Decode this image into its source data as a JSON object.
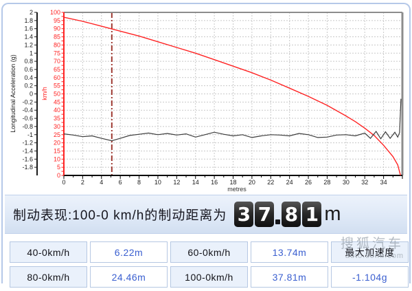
{
  "colors": {
    "speed_line": "#ff2222",
    "accel_line": "#3d3d3d",
    "marker_line": "#9e3a32",
    "grid": "#c8c8c8",
    "axis_black": "#1a1a1a",
    "border_gray": "#8c8c8c",
    "value_text_blue": "#3a5fd0",
    "frame_blue": "#b5c8e8"
  },
  "chart_data": {
    "type": "line",
    "title": "",
    "xlabel": "metres",
    "x_range": [
      0,
      36
    ],
    "x_tick_labels": [
      "0",
      "2",
      "4",
      "6",
      "8",
      "10",
      "12",
      "14",
      "16",
      "18",
      "20",
      "22",
      "24",
      "26",
      "28",
      "30",
      "32",
      "34"
    ],
    "left_axis": {
      "label": "Longitudinal Acceleration (g)",
      "range": [
        -2,
        2
      ],
      "tick_labels": [
        "2",
        "1.8",
        "1.6",
        "1.4",
        "1.2",
        "1",
        "0.8",
        "0.6",
        "0.4",
        "0.2",
        "0",
        "-0.2",
        "-0.4",
        "-0.6",
        "-0.8",
        "-1",
        "-1.2",
        "-1.4",
        "-1.6",
        "-1.8"
      ]
    },
    "speed_axis": {
      "label": "km/h",
      "range": [
        0,
        100
      ],
      "tick_labels": [
        "100",
        "95",
        "90",
        "85",
        "80",
        "75",
        "70",
        "65",
        "60",
        "55",
        "50",
        "45",
        "40",
        "35",
        "30",
        "25",
        "20",
        "15",
        "10",
        "5",
        "0"
      ]
    },
    "grid": {
      "vertical_every_m": 2,
      "horizontal_every_kmh": 5,
      "style": "dashed"
    },
    "marker_line": {
      "x_m": 5.1,
      "style": "dash-dot"
    },
    "series": [
      {
        "name": "speed",
        "axis": "speed",
        "points": [
          [
            0,
            97
          ],
          [
            2,
            94.5
          ],
          [
            4,
            91.5
          ],
          [
            6,
            88.5
          ],
          [
            8,
            85.5
          ],
          [
            10,
            82
          ],
          [
            12,
            78.5
          ],
          [
            14,
            75
          ],
          [
            16,
            71
          ],
          [
            18,
            67
          ],
          [
            20,
            63
          ],
          [
            22,
            58.5
          ],
          [
            24,
            53.5
          ],
          [
            26,
            48.5
          ],
          [
            28,
            43
          ],
          [
            30,
            36.5
          ],
          [
            31,
            33
          ],
          [
            32,
            29
          ],
          [
            33,
            24.5
          ],
          [
            34,
            18.5
          ],
          [
            35,
            11.5
          ],
          [
            35.5,
            6.5
          ],
          [
            35.8,
            0
          ]
        ]
      },
      {
        "name": "longitudinal-acceleration",
        "axis": "g",
        "points": [
          [
            0,
            -0.98
          ],
          [
            1,
            -1.01
          ],
          [
            2,
            -1.05
          ],
          [
            3,
            -1.03
          ],
          [
            4,
            -1.09
          ],
          [
            5.1,
            -1.15
          ],
          [
            6,
            -1.09
          ],
          [
            7,
            -1.02
          ],
          [
            8,
            -0.99
          ],
          [
            9,
            -0.96
          ],
          [
            10,
            -1.0
          ],
          [
            11,
            -0.97
          ],
          [
            12,
            -1.01
          ],
          [
            13,
            -0.98
          ],
          [
            14,
            -1.06
          ],
          [
            15,
            -1.0
          ],
          [
            16,
            -0.94
          ],
          [
            17,
            -0.99
          ],
          [
            18,
            -1.03
          ],
          [
            19,
            -1.0
          ],
          [
            20,
            -1.07
          ],
          [
            21,
            -1.03
          ],
          [
            22,
            -1.0
          ],
          [
            23,
            -1.01
          ],
          [
            24,
            -1.03
          ],
          [
            25,
            -0.97
          ],
          [
            26,
            -1.0
          ],
          [
            27,
            -1.07
          ],
          [
            28,
            -1.06
          ],
          [
            29,
            -1.01
          ],
          [
            30,
            -1.0
          ],
          [
            31,
            -1.03
          ],
          [
            32,
            -0.96
          ],
          [
            32.6,
            -1.09
          ],
          [
            33.2,
            -0.92
          ],
          [
            33.7,
            -1.1
          ],
          [
            34.2,
            -0.93
          ],
          [
            34.7,
            -1.09
          ],
          [
            35.2,
            -0.94
          ],
          [
            35.5,
            -1.06
          ],
          [
            35.7,
            -0.95
          ],
          [
            35.85,
            -0.12
          ]
        ]
      }
    ]
  },
  "summary": {
    "label": "制动表现:100-0 km/h的制动距离为",
    "value": "37.81",
    "unit": "m"
  },
  "table": {
    "rows": [
      [
        {
          "text": "40-0km/h",
          "kind": "label"
        },
        {
          "text": "6.22m",
          "kind": "value"
        },
        {
          "text": "60-0km/h",
          "kind": "label"
        },
        {
          "text": "13.74m",
          "kind": "value"
        },
        {
          "text": "最大加速度",
          "kind": "label"
        }
      ],
      [
        {
          "text": "80-0km/h",
          "kind": "label"
        },
        {
          "text": "24.46m",
          "kind": "value"
        },
        {
          "text": "100-0km/h",
          "kind": "label"
        },
        {
          "text": "37.81m",
          "kind": "value"
        },
        {
          "text": "-1.104g",
          "kind": "value"
        }
      ]
    ]
  },
  "watermark": {
    "line1": "搜狐汽车",
    "line2": "auto.sohu.com"
  }
}
